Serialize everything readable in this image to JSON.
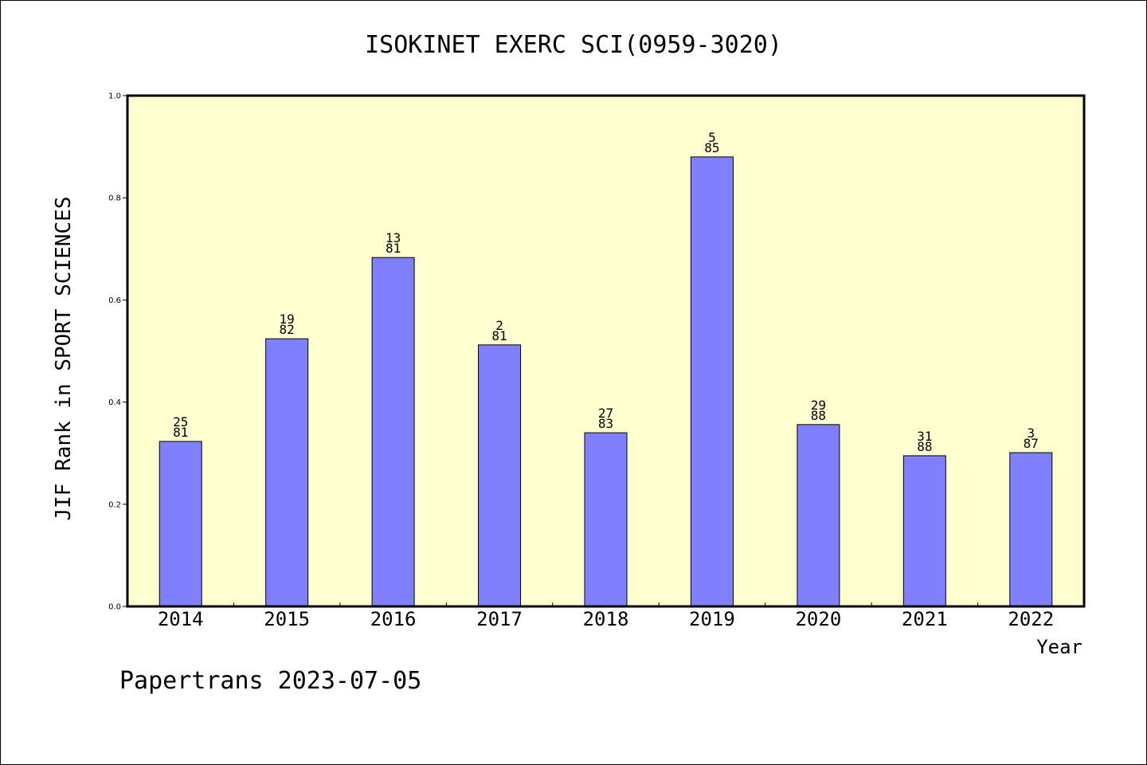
{
  "footer_text": "Papertrans 2023-07-05",
  "colors": {
    "plot_background": "#ffffd0",
    "bar_fill": "#8080ff",
    "bar_stroke": "#000000"
  },
  "chart_data": {
    "type": "bar",
    "title": "ISOKINET EXERC SCI(0959-3020)",
    "xlabel": "Year",
    "ylabel": "JIF Rank in SPORT SCIENCES",
    "ylim": [
      0,
      1.0
    ],
    "yticks": [
      "0.0",
      "0.2",
      "0.4",
      "0.6",
      "0.8",
      "1.0"
    ],
    "grid": false,
    "categories": [
      "2014",
      "2015",
      "2016",
      "2017",
      "2018",
      "2019",
      "2020",
      "2021",
      "2022"
    ],
    "values": [
      0.323,
      0.524,
      0.683,
      0.512,
      0.34,
      0.88,
      0.356,
      0.295,
      0.301
    ],
    "rank_labels": [
      {
        "rank": "25",
        "total": "81"
      },
      {
        "rank": "19",
        "total": "82"
      },
      {
        "rank": "13",
        "total": "81"
      },
      {
        "rank": "2",
        "total": "81"
      },
      {
        "rank": "27",
        "total": "83"
      },
      {
        "rank": "5",
        "total": "85"
      },
      {
        "rank": "29",
        "total": "88"
      },
      {
        "rank": "31",
        "total": "88"
      },
      {
        "rank": "3",
        "total": "87"
      }
    ]
  }
}
